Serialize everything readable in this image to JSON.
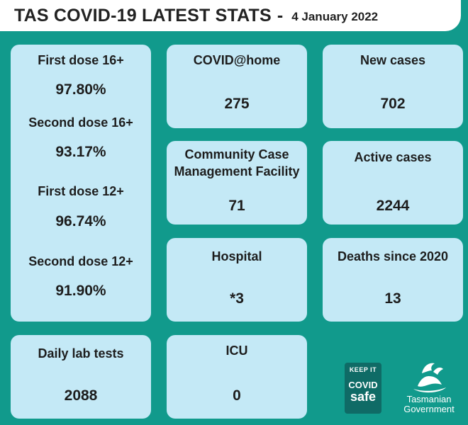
{
  "header": {
    "title": "TAS COVID-19 LATEST STATS",
    "separator": "-",
    "date": "4 January 2022"
  },
  "vaccination": [
    {
      "label": "First dose 16+",
      "value": "97.80%"
    },
    {
      "label": "Second dose 16+",
      "value": "93.17%"
    },
    {
      "label": "First dose 12+",
      "value": "96.74%"
    },
    {
      "label": "Second dose 12+",
      "value": "91.90%"
    }
  ],
  "stats": {
    "covid_home": {
      "label": "COVID@home",
      "value": "275"
    },
    "new_cases": {
      "label": "New cases",
      "value": "702"
    },
    "ccmf": {
      "label_line1": "Community Case",
      "label_line2": "Management Facility",
      "value": "71"
    },
    "active_cases": {
      "label": "Active cases",
      "value": "2244"
    },
    "hospital": {
      "label": "Hospital",
      "value": "*3"
    },
    "deaths": {
      "label": "Deaths since 2020",
      "value": "13"
    },
    "lab_tests": {
      "label": "Daily lab tests",
      "value": "2088"
    },
    "icu": {
      "label": "ICU",
      "value": "0"
    }
  },
  "logos": {
    "covid_safe": {
      "line1": "KEEP IT",
      "line2": "COVID",
      "line3": "safe"
    },
    "tas_gov": {
      "line1": "Tasmanian",
      "line2": "Government"
    }
  }
}
